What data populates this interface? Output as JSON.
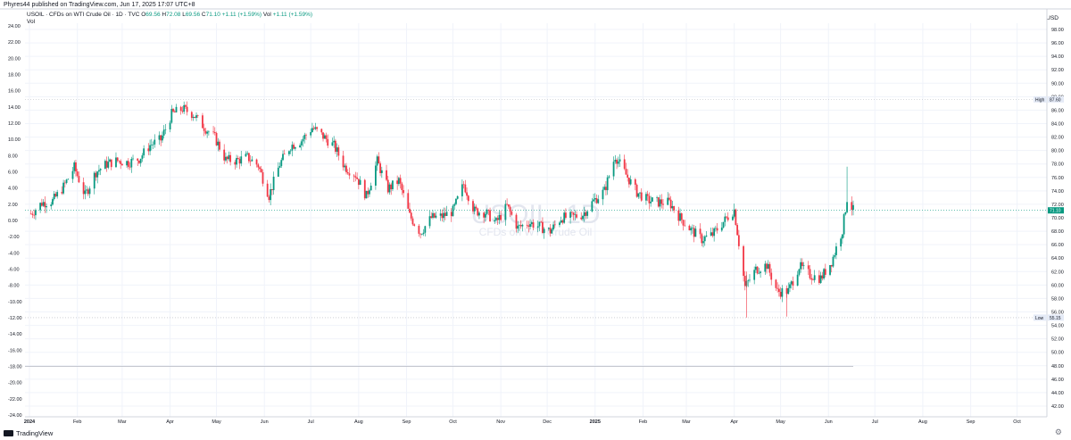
{
  "header": {
    "published_line": "Phyres44 published on TradingView.com, Jun 17, 2025 17:07 UTC+8",
    "legend_title": "USOIL · CFDs on WTI Crude Oil · 1D · TVC",
    "legend_o_label": "O",
    "legend_o": "69.56",
    "legend_h_label": "H",
    "legend_h": "72.08",
    "legend_l_label": "L",
    "legend_l": "69.56",
    "legend_c_label": "C",
    "legend_c": "71.10",
    "legend_change": "+1.11 (+1.59%)",
    "legend_vol_label": "Vol",
    "legend_vol_value": "+1.11 (+1.59%)",
    "vol_line": "Vol",
    "currency": "USD"
  },
  "watermark": {
    "symbol": "USOIL, 1D",
    "description": "CFDs on WTI Crude Oil"
  },
  "footer": {
    "brand": "TradingView"
  },
  "colors": {
    "up": "#089981",
    "down": "#f23645",
    "grid": "#f0f3fa",
    "text": "#131722",
    "price_badge": "#089981",
    "high_low_badge": "#e4eaf6"
  },
  "chart_data": {
    "type": "candlestick",
    "symbol": "USOIL",
    "interval": "1D",
    "y_right_range": [
      40,
      100
    ],
    "y_right_ticks": [
      42,
      44,
      46,
      48,
      50,
      52,
      54,
      56,
      58,
      60,
      62,
      64,
      66,
      68,
      70,
      72,
      74,
      76,
      78,
      80,
      82,
      84,
      86,
      88,
      90,
      92,
      94,
      96,
      98
    ],
    "y_left_range": [
      -24,
      24
    ],
    "y_left_ticks": [
      -24,
      -22,
      -20,
      -18,
      -16,
      -14,
      -12,
      -10,
      -8,
      -6,
      -4,
      -2,
      0,
      2,
      4,
      6,
      8,
      10,
      12,
      14,
      16,
      18,
      20,
      22,
      24
    ],
    "y_left_labels": [
      "-24.00",
      "-22.00",
      "-20.00",
      "-18.00",
      "-16.00",
      "-14.00",
      "-12.00",
      "-10.00",
      "-8.00",
      "-6.00",
      "-4.00",
      "-2.00",
      "0.00",
      "2.00",
      "4.00",
      "6.00",
      "8.00",
      "10.00",
      "12.00",
      "14.00",
      "16.00",
      "18.00",
      "20.00",
      "22.00",
      "24.00"
    ],
    "x_tick_labels": [
      "2024",
      "Feb",
      "Mar",
      "Apr",
      "May",
      "Jun",
      "Jul",
      "Aug",
      "Sep",
      "Oct",
      "Nov",
      "Dec",
      "2025",
      "Feb",
      "Mar",
      "Apr",
      "May",
      "Jun",
      "Jul",
      "Aug",
      "Sep",
      "Oct"
    ],
    "x_tick_bold": [
      "2024",
      "2025"
    ],
    "last_price": 71.1,
    "last_price_label": "71.10",
    "high": {
      "label": "High",
      "value": 87.6,
      "value_label": "87.60"
    },
    "low": {
      "label": "Low",
      "value": 55.15,
      "value_label": "55.15"
    },
    "horizontal_line_left_value": -18,
    "grid": true,
    "approx_close_path": [
      {
        "date": "2024-01-02",
        "close": 70.6
      },
      {
        "date": "2024-01-09",
        "close": 72.2
      },
      {
        "date": "2024-01-16",
        "close": 72.5
      },
      {
        "date": "2024-01-23",
        "close": 74.6
      },
      {
        "date": "2024-01-30",
        "close": 77.5
      },
      {
        "date": "2024-02-06",
        "close": 73.3
      },
      {
        "date": "2024-02-13",
        "close": 76.8
      },
      {
        "date": "2024-02-20",
        "close": 78.0
      },
      {
        "date": "2024-02-27",
        "close": 78.5
      },
      {
        "date": "2024-03-05",
        "close": 78.2
      },
      {
        "date": "2024-03-12",
        "close": 78.8
      },
      {
        "date": "2024-03-19",
        "close": 80.8
      },
      {
        "date": "2024-03-26",
        "close": 81.6
      },
      {
        "date": "2024-04-02",
        "close": 85.4
      },
      {
        "date": "2024-04-09",
        "close": 86.2
      },
      {
        "date": "2024-04-16",
        "close": 85.4
      },
      {
        "date": "2024-04-23",
        "close": 83.5
      },
      {
        "date": "2024-04-30",
        "close": 81.9
      },
      {
        "date": "2024-05-07",
        "close": 78.6
      },
      {
        "date": "2024-05-14",
        "close": 78.5
      },
      {
        "date": "2024-05-21",
        "close": 79.0
      },
      {
        "date": "2024-05-28",
        "close": 77.8
      },
      {
        "date": "2024-06-04",
        "close": 73.3
      },
      {
        "date": "2024-06-11",
        "close": 78.0
      },
      {
        "date": "2024-06-18",
        "close": 80.7
      },
      {
        "date": "2024-06-25",
        "close": 81.5
      },
      {
        "date": "2024-07-02",
        "close": 83.4
      },
      {
        "date": "2024-07-09",
        "close": 82.1
      },
      {
        "date": "2024-07-16",
        "close": 80.7
      },
      {
        "date": "2024-07-23",
        "close": 77.6
      },
      {
        "date": "2024-07-30",
        "close": 76.4
      },
      {
        "date": "2024-08-06",
        "close": 73.2
      },
      {
        "date": "2024-08-13",
        "close": 78.4
      },
      {
        "date": "2024-08-20",
        "close": 74.3
      },
      {
        "date": "2024-08-27",
        "close": 75.5
      },
      {
        "date": "2024-09-03",
        "close": 70.3
      },
      {
        "date": "2024-09-10",
        "close": 67.8
      },
      {
        "date": "2024-09-17",
        "close": 70.0
      },
      {
        "date": "2024-09-24",
        "close": 70.2
      },
      {
        "date": "2024-10-01",
        "close": 71.0
      },
      {
        "date": "2024-10-08",
        "close": 75.0
      },
      {
        "date": "2024-10-15",
        "close": 71.0
      },
      {
        "date": "2024-10-22",
        "close": 70.8
      },
      {
        "date": "2024-10-29",
        "close": 69.3
      },
      {
        "date": "2024-11-05",
        "close": 71.7
      },
      {
        "date": "2024-11-12",
        "close": 68.5
      },
      {
        "date": "2024-11-19",
        "close": 69.3
      },
      {
        "date": "2024-11-26",
        "close": 68.7
      },
      {
        "date": "2024-12-03",
        "close": 68.0
      },
      {
        "date": "2024-12-10",
        "close": 70.0
      },
      {
        "date": "2024-12-17",
        "close": 70.1
      },
      {
        "date": "2024-12-24",
        "close": 70.5
      },
      {
        "date": "2024-12-31",
        "close": 72.5
      },
      {
        "date": "2025-01-07",
        "close": 74.0
      },
      {
        "date": "2025-01-14",
        "close": 79.2
      },
      {
        "date": "2025-01-21",
        "close": 76.4
      },
      {
        "date": "2025-01-28",
        "close": 73.8
      },
      {
        "date": "2025-02-04",
        "close": 72.6
      },
      {
        "date": "2025-02-11",
        "close": 72.3
      },
      {
        "date": "2025-02-18",
        "close": 72.3
      },
      {
        "date": "2025-02-25",
        "close": 70.0
      },
      {
        "date": "2025-03-04",
        "close": 68.2
      },
      {
        "date": "2025-03-11",
        "close": 66.8
      },
      {
        "date": "2025-03-18",
        "close": 67.5
      },
      {
        "date": "2025-03-25",
        "close": 69.4
      },
      {
        "date": "2025-04-01",
        "close": 71.2
      },
      {
        "date": "2025-04-08",
        "close": 59.7
      },
      {
        "date": "2025-04-15",
        "close": 62.3
      },
      {
        "date": "2025-04-22",
        "close": 63.0
      },
      {
        "date": "2025-04-29",
        "close": 59.0
      },
      {
        "date": "2025-05-06",
        "close": 59.1
      },
      {
        "date": "2025-05-13",
        "close": 62.8
      },
      {
        "date": "2025-05-20",
        "close": 61.5
      },
      {
        "date": "2025-05-27",
        "close": 61.0
      },
      {
        "date": "2025-06-03",
        "close": 63.5
      },
      {
        "date": "2025-06-10",
        "close": 68.2
      },
      {
        "date": "2025-06-13",
        "close": 72.9
      },
      {
        "date": "2025-06-17",
        "close": 71.1
      }
    ]
  }
}
